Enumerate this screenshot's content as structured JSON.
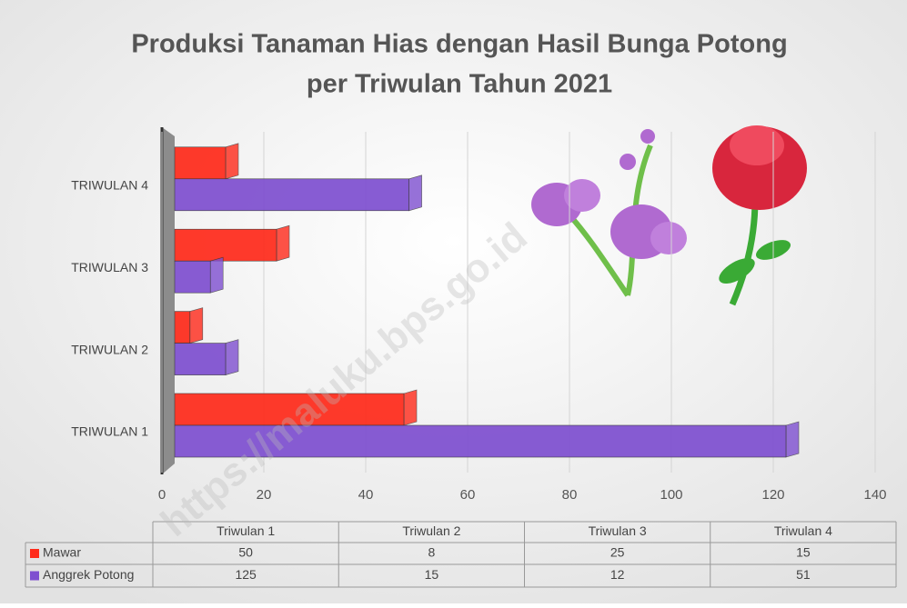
{
  "chart_data": {
    "type": "bar",
    "orientation": "horizontal",
    "title": "Produksi Tanaman Hias dengan Hasil Bunga Potong",
    "subtitle": "per Triwulan Tahun 2021",
    "categories": [
      "TRIWULAN 1",
      "TRIWULAN 2",
      "TRIWULAN 3",
      "TRIWULAN 4"
    ],
    "table_columns": [
      "Triwulan 1",
      "Triwulan 2",
      "Triwulan 3",
      "Triwulan 4"
    ],
    "series": [
      {
        "name": "Mawar",
        "color": "#ff2a1a",
        "values": [
          50,
          8,
          25,
          15
        ]
      },
      {
        "name": "Anggrek Potong",
        "color": "#7e4fd0",
        "values": [
          125,
          15,
          12,
          51
        ]
      }
    ],
    "xlim": [
      0,
      140
    ],
    "xticks": [
      0,
      20,
      40,
      60,
      80,
      100,
      120,
      140
    ],
    "grid": true,
    "watermark": "https://maluku.bps.go.id"
  }
}
